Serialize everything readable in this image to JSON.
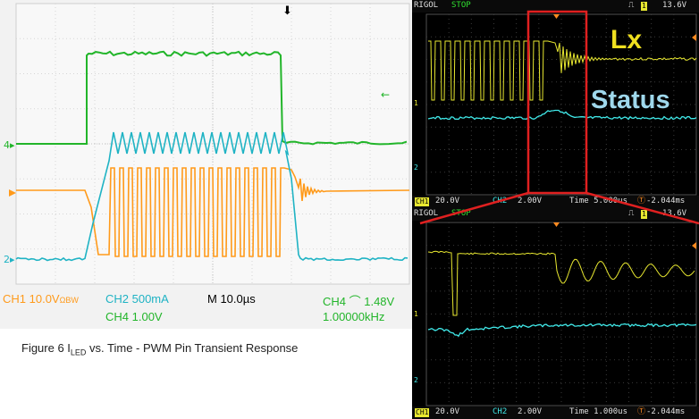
{
  "left_scope": {
    "ch1_label": "CH1  10.0V",
    "ch1_suffix": "ΩBW",
    "ch2_label": "CH2  500mA",
    "timebase": "M 10.0µs",
    "trigger": "CH4 ⌒ 1.48V",
    "ch4_label": "CH4  1.00V",
    "frequency": "1.00000kHz",
    "marker_ch4": "4",
    "marker_ch2": "2",
    "colors": {
      "ch1": "#ff9a1a",
      "ch2": "#1fb3c4",
      "ch4": "#22b52a",
      "text_orange": "#ff9a1a",
      "text_green": "#22b52a"
    }
  },
  "caption": {
    "prefix": "Figure 6  I",
    "sub": "LED",
    "suffix": " vs. Time - PWM Pin Transient Response"
  },
  "top_scope": {
    "brand": "RIGOL",
    "state": "STOP",
    "trig_level": "13.6V",
    "ch1_box": "CH1",
    "ch1_scale": "20.0V",
    "ch2_box": "CH2",
    "ch2_scale": "2.00V",
    "time": "Time 5.000us",
    "trig_offset": "-2.044ms",
    "label_lx": "Lx",
    "label_status": "Status",
    "marker_1": "1",
    "marker_2": "2"
  },
  "bottom_scope": {
    "brand": "RIGOL",
    "state": "STOP",
    "trig_level": "13.6V",
    "ch1_box": "CH1",
    "ch1_scale": "20.0V",
    "ch2_box": "CH2",
    "ch2_scale": "2.00V",
    "time": "Time 1.000us",
    "trig_offset": "-2.044ms",
    "marker_1": "1",
    "marker_2": "2"
  },
  "colors": {
    "rigol_yellow": "#e8e830",
    "rigol_cyan": "#40e8e8",
    "highlight_red": "#e02020",
    "label_yellow": "#f0e020",
    "label_blue": "#9fd8ec"
  }
}
